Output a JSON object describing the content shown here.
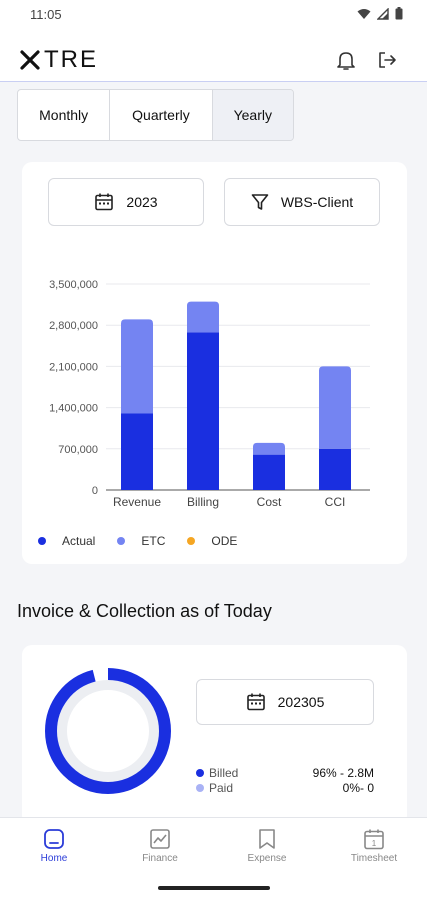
{
  "status_bar": {
    "time": "11:05"
  },
  "header": {
    "logo_text": "TRE"
  },
  "period_tabs": [
    {
      "label": "Monthly"
    },
    {
      "label": "Quarterly"
    },
    {
      "label": "Yearly"
    }
  ],
  "filters": {
    "year": "2023",
    "group": "WBS-Client"
  },
  "chart_data": {
    "type": "bar",
    "stacked": true,
    "categories": [
      "Revenue",
      "Billing",
      "Cost",
      "CCI"
    ],
    "series": [
      {
        "name": "Actual",
        "color": "#1a2fe0",
        "values": [
          1300000,
          2680000,
          600000,
          700000
        ]
      },
      {
        "name": "ETC",
        "color": "#7484f2",
        "values": [
          1600000,
          520000,
          200000,
          1400000
        ]
      },
      {
        "name": "ODE",
        "color": "#f5a623",
        "values": [
          0,
          0,
          0,
          0
        ]
      }
    ],
    "ylim": [
      0,
      3500000
    ],
    "yticks": [
      "3,500,000",
      "2,800,000",
      "2,100,000",
      "1,400,000",
      "700,000",
      "0"
    ],
    "ytick_values": [
      3500000,
      2800000,
      2100000,
      1400000,
      700000,
      0
    ],
    "grid": true,
    "legend_position": "bottom-left"
  },
  "invoice": {
    "section_title": "Invoice & Collection as of Today",
    "period": "202305",
    "billed_fraction": 0.96,
    "paid_fraction": 0,
    "rows": [
      {
        "label": "Billed",
        "value": "96% - 2.8M",
        "color": "#1a2fe0"
      },
      {
        "label": "Paid",
        "value": "0%- 0",
        "color": "#a9b2f5"
      }
    ]
  },
  "nav": [
    {
      "label": "Home",
      "icon": "home-icon",
      "active": true
    },
    {
      "label": "Finance",
      "icon": "finance-icon",
      "active": false
    },
    {
      "label": "Expense",
      "icon": "expense-icon",
      "active": false
    },
    {
      "label": "Timesheet",
      "icon": "timesheet-icon",
      "active": false
    }
  ],
  "nav_timesheet_day": "1"
}
